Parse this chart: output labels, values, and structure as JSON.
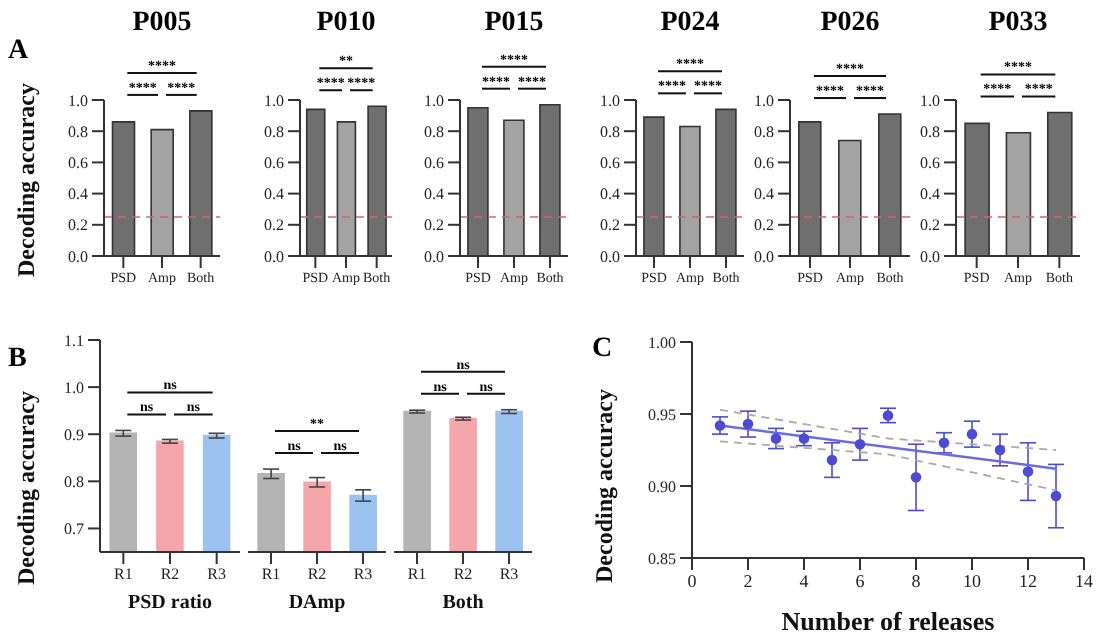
{
  "chart_data": [
    {
      "type": "bar",
      "title": "P005",
      "ylabel": "Decoding accuracy",
      "categories": [
        "PSD",
        "Amp",
        "Both"
      ],
      "values": [
        0.86,
        0.81,
        0.93
      ],
      "colors": [
        "#6f6f6f",
        "#a3a3a3",
        "#6f6f6f"
      ],
      "ylim": [
        0,
        1
      ],
      "yticks": [
        {
          "value": 0,
          "label": "0.0"
        },
        {
          "value": 0.2,
          "label": "0.2"
        },
        {
          "value": 0.4,
          "label": "0.4"
        },
        {
          "value": 0.6,
          "label": "0.6"
        },
        {
          "value": 0.8,
          "label": "0.8"
        },
        {
          "value": 1,
          "label": "1.0"
        }
      ],
      "ref_lines": [
        {
          "axis": "y",
          "value": 0.25,
          "color": "#e06060",
          "line_style": "dashed"
        }
      ],
      "annotations": [
        "A",
        "****",
        "****",
        "****"
      ]
    },
    {
      "type": "bar",
      "title": "P010",
      "categories": [
        "PSD",
        "Amp",
        "Both"
      ],
      "values": [
        0.94,
        0.86,
        0.96
      ],
      "colors": [
        "#6f6f6f",
        "#a3a3a3",
        "#6f6f6f"
      ],
      "ylim": [
        0,
        1
      ],
      "yticks": [
        {
          "value": 0,
          "label": "0.0"
        },
        {
          "value": 0.2,
          "label": "0.2"
        },
        {
          "value": 0.4,
          "label": "0.4"
        },
        {
          "value": 0.6,
          "label": "0.6"
        },
        {
          "value": 0.8,
          "label": "0.8"
        },
        {
          "value": 1,
          "label": "1.0"
        }
      ],
      "ref_lines": [
        {
          "axis": "y",
          "value": 0.25,
          "color": "#e06060",
          "line_style": "dashed"
        }
      ],
      "annotations": [
        "****",
        "****",
        "**"
      ]
    },
    {
      "type": "bar",
      "title": "P015",
      "categories": [
        "PSD",
        "Amp",
        "Both"
      ],
      "values": [
        0.95,
        0.87,
        0.97
      ],
      "colors": [
        "#6f6f6f",
        "#a3a3a3",
        "#6f6f6f"
      ],
      "ylim": [
        0,
        1
      ],
      "yticks": [
        {
          "value": 0,
          "label": "0.0"
        },
        {
          "value": 0.2,
          "label": "0.2"
        },
        {
          "value": 0.4,
          "label": "0.4"
        },
        {
          "value": 0.6,
          "label": "0.6"
        },
        {
          "value": 0.8,
          "label": "0.8"
        },
        {
          "value": 1,
          "label": "1.0"
        }
      ],
      "ref_lines": [
        {
          "axis": "y",
          "value": 0.25,
          "color": "#e06060",
          "line_style": "dashed"
        }
      ],
      "annotations": [
        "****",
        "****",
        "****"
      ]
    },
    {
      "type": "bar",
      "title": "P024",
      "categories": [
        "PSD",
        "Amp",
        "Both"
      ],
      "values": [
        0.89,
        0.83,
        0.94
      ],
      "colors": [
        "#6f6f6f",
        "#a3a3a3",
        "#6f6f6f"
      ],
      "ylim": [
        0,
        1
      ],
      "yticks": [
        {
          "value": 0,
          "label": "0.0"
        },
        {
          "value": 0.2,
          "label": "0.2"
        },
        {
          "value": 0.4,
          "label": "0.4"
        },
        {
          "value": 0.6,
          "label": "0.6"
        },
        {
          "value": 0.8,
          "label": "0.8"
        },
        {
          "value": 1,
          "label": "1.0"
        }
      ],
      "ref_lines": [
        {
          "axis": "y",
          "value": 0.25,
          "color": "#e06060",
          "line_style": "dashed"
        }
      ],
      "annotations": [
        "****",
        "****",
        "****"
      ]
    },
    {
      "type": "bar",
      "title": "P026",
      "categories": [
        "PSD",
        "Amp",
        "Both"
      ],
      "values": [
        0.86,
        0.74,
        0.91
      ],
      "colors": [
        "#6f6f6f",
        "#a3a3a3",
        "#6f6f6f"
      ],
      "ylim": [
        0,
        1
      ],
      "yticks": [
        {
          "value": 0,
          "label": "0.0"
        },
        {
          "value": 0.2,
          "label": "0.2"
        },
        {
          "value": 0.4,
          "label": "0.4"
        },
        {
          "value": 0.6,
          "label": "0.6"
        },
        {
          "value": 0.8,
          "label": "0.8"
        },
        {
          "value": 1,
          "label": "1.0"
        }
      ],
      "ref_lines": [
        {
          "axis": "y",
          "value": 0.25,
          "color": "#e06060",
          "line_style": "dashed"
        }
      ],
      "annotations": [
        "****",
        "****",
        "****"
      ]
    },
    {
      "type": "bar",
      "title": "P033",
      "categories": [
        "PSD",
        "Amp",
        "Both"
      ],
      "values": [
        0.85,
        0.79,
        0.92
      ],
      "colors": [
        "#6f6f6f",
        "#a3a3a3",
        "#6f6f6f"
      ],
      "ylim": [
        0,
        1
      ],
      "yticks": [
        {
          "value": 0,
          "label": "0.0"
        },
        {
          "value": 0.2,
          "label": "0.2"
        },
        {
          "value": 0.4,
          "label": "0.4"
        },
        {
          "value": 0.6,
          "label": "0.6"
        },
        {
          "value": 0.8,
          "label": "0.8"
        },
        {
          "value": 1,
          "label": "1.0"
        }
      ],
      "ref_lines": [
        {
          "axis": "y",
          "value": 0.25,
          "color": "#e06060",
          "line_style": "dashed"
        }
      ],
      "annotations": [
        "****",
        "****",
        "****"
      ]
    },
    {
      "type": "bar",
      "xlabel": "PSD ratio",
      "ylabel": "Decoding accuracy",
      "categories": [
        "R1",
        "R2",
        "R3"
      ],
      "values": [
        0.902,
        0.885,
        0.897
      ],
      "errors": [
        0.006,
        0.004,
        0.005
      ],
      "colors": [
        "#b4b4b4",
        "#f4a6aa",
        "#9cc2f0"
      ],
      "ylim": [
        0.65,
        1.1
      ],
      "yticks": [
        0.7,
        0.8,
        0.9,
        {
          "value": 1,
          "label": "1.0"
        },
        1.1
      ],
      "annotations": [
        "B",
        "ns",
        "ns",
        "ns"
      ]
    },
    {
      "type": "bar",
      "xlabel": "DAmp",
      "categories": [
        "R1",
        "R2",
        "R3"
      ],
      "values": [
        0.816,
        0.798,
        0.77
      ],
      "errors": [
        0.01,
        0.01,
        0.012
      ],
      "colors": [
        "#b4b4b4",
        "#f4a6aa",
        "#9cc2f0"
      ],
      "ylim": [
        0.65,
        1.1
      ],
      "tick_labels": "x",
      "annotations": [
        "ns",
        "ns",
        "**"
      ]
    },
    {
      "type": "bar",
      "xlabel": "Both",
      "categories": [
        "R1",
        "R2",
        "R3"
      ],
      "values": [
        0.948,
        0.933,
        0.948
      ],
      "errors": [
        0.003,
        0.003,
        0.004
      ],
      "colors": [
        "#b4b4b4",
        "#f4a6aa",
        "#9cc2f0"
      ],
      "ylim": [
        0.65,
        1.1
      ],
      "tick_labels": "x",
      "annotations": [
        "ns",
        "ns",
        "ns"
      ]
    },
    {
      "type": "scatter",
      "xlabel": "Number of releases",
      "ylabel": "Decoding accuracy",
      "x": [
        1,
        2,
        3,
        4,
        5,
        6,
        7,
        8,
        9,
        10,
        11,
        12,
        13
      ],
      "marker": "circle",
      "xlim": [
        0,
        14
      ],
      "xticks": [
        0,
        2,
        4,
        6,
        8,
        10,
        12,
        14
      ],
      "ylim": [
        0.85,
        1
      ],
      "yticks": [
        {
          "value": 0.85,
          "label": "0.85"
        },
        {
          "value": 0.9,
          "label": "0.90"
        },
        {
          "value": 0.95,
          "label": "0.95"
        },
        {
          "value": 1,
          "label": "1.00"
        }
      ],
      "annotations": [
        "C"
      ],
      "series": [
        {
          "type": "scatter",
          "color": "#4b4bd8",
          "values": [
            0.942,
            0.943,
            0.933,
            0.933,
            0.918,
            0.929,
            0.949,
            0.906,
            0.93,
            0.936,
            0.925,
            0.91,
            0.893
          ],
          "errors": [
            0.006,
            0.009,
            0.007,
            0.005,
            0.012,
            0.011,
            0.005,
            0.023,
            0.007,
            0.009,
            0.011,
            0.02,
            0.022
          ]
        },
        {
          "type": "line",
          "x": [
            1,
            13
          ],
          "values": [
            0.942,
            0.912
          ],
          "color": "#6b6be0",
          "marker": "none"
        },
        {
          "type": "line",
          "x": [
            1,
            7,
            13
          ],
          "values": [
            0.953,
            0.933,
            0.925
          ],
          "color": "#aaaaaa",
          "marker": "none",
          "line_style": "dashed"
        },
        {
          "type": "line",
          "x": [
            1,
            7,
            13
          ],
          "values": [
            0.931,
            0.922,
            0.897
          ],
          "color": "#aaaaaa",
          "marker": "none",
          "line_style": "dashed"
        }
      ]
    }
  ]
}
